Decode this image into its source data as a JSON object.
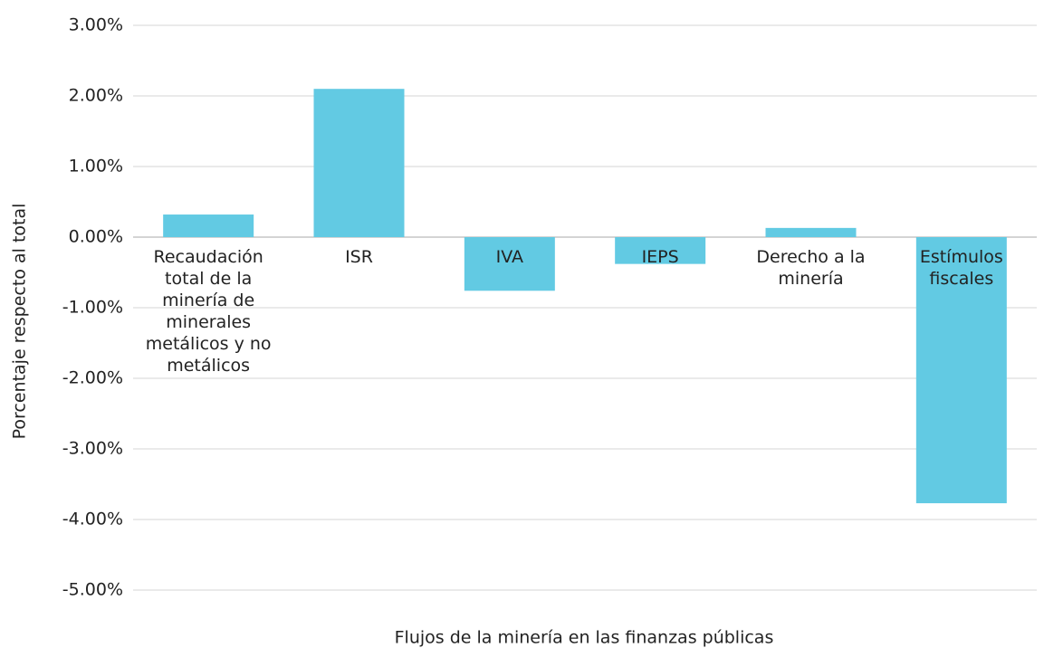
{
  "chart_data": {
    "type": "bar",
    "x_label": "Flujos de la minería en las finanzas públicas",
    "y_label": "Porcentaje respecto al total",
    "categories": [
      "Recaudación total de la minería de minerales metálicos y no metálicos",
      "ISR",
      "IVA",
      "IEPS",
      "Derecho a la minería",
      "Estímulos fiscales"
    ],
    "values": [
      0.32,
      2.1,
      -0.76,
      -0.38,
      0.13,
      -3.77
    ],
    "color": "#62cae3",
    "ylim": [
      -5,
      3
    ],
    "yticks": [
      {
        "value": -5,
        "label": "-5.00%"
      },
      {
        "value": -4,
        "label": "-4.00%"
      },
      {
        "value": -3,
        "label": "-3.00%"
      },
      {
        "value": -2,
        "label": "-2.00%"
      },
      {
        "value": -1,
        "label": "-1.00%"
      },
      {
        "value": 0,
        "label": "0.00%"
      },
      {
        "value": 1,
        "label": "1.00%"
      },
      {
        "value": 2,
        "label": "2.00%"
      },
      {
        "value": 3,
        "label": "3.00%"
      }
    ],
    "grid": true
  }
}
